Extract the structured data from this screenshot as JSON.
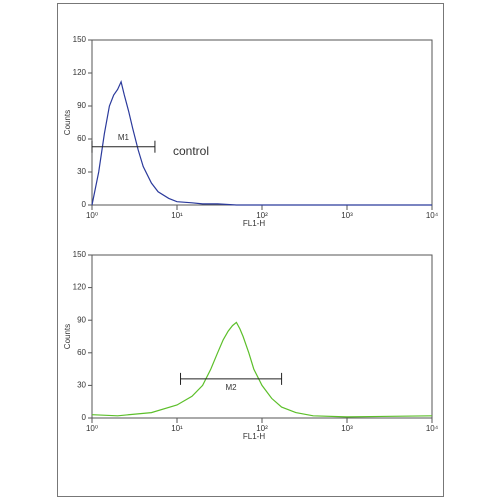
{
  "chart_data": [
    {
      "type": "line",
      "y_label": "Counts",
      "x_label": "FL1-H",
      "log_x": true,
      "color": "#2b3a9c",
      "xlim": [
        1,
        10000
      ],
      "ylim": [
        0,
        150
      ],
      "xticks": [
        {
          "value": 1,
          "label": "10⁰"
        },
        {
          "value": 10,
          "label": "10¹"
        },
        {
          "value": 100,
          "label": "10²"
        },
        {
          "value": 1000,
          "label": "10³"
        },
        {
          "value": 10000,
          "label": "10⁴"
        }
      ],
      "yticks": [
        0,
        30,
        60,
        90,
        120,
        150
      ],
      "x": [
        1,
        1.2,
        1.4,
        1.6,
        1.8,
        2,
        2.2,
        2.4,
        2.7,
        3,
        3.5,
        4,
        5,
        6,
        8,
        10,
        15,
        20,
        30,
        50,
        100,
        10000
      ],
      "values": [
        0,
        30,
        65,
        90,
        100,
        105,
        112,
        100,
        85,
        70,
        50,
        35,
        20,
        12,
        6,
        3,
        2,
        1,
        1,
        0,
        0,
        0
      ],
      "marker": {
        "label": "M1",
        "x": [
          1,
          5.5
        ],
        "y": 53
      },
      "annotation": "control"
    },
    {
      "type": "line",
      "y_label": "Counts",
      "x_label": "FL1-H",
      "log_x": true,
      "color": "#5cbf2a",
      "xlim": [
        1,
        10000
      ],
      "ylim": [
        0,
        150
      ],
      "xticks": [
        {
          "value": 1,
          "label": "10⁰"
        },
        {
          "value": 10,
          "label": "10¹"
        },
        {
          "value": 100,
          "label": "10²"
        },
        {
          "value": 1000,
          "label": "10³"
        },
        {
          "value": 10000,
          "label": "10⁴"
        }
      ],
      "yticks": [
        0,
        30,
        60,
        90,
        120,
        150
      ],
      "x": [
        1,
        2,
        5,
        10,
        15,
        20,
        25,
        30,
        35,
        40,
        45,
        50,
        55,
        60,
        70,
        80,
        100,
        130,
        170,
        250,
        400,
        1000,
        10000
      ],
      "values": [
        3,
        2,
        5,
        12,
        20,
        30,
        45,
        60,
        72,
        80,
        85,
        88,
        82,
        75,
        60,
        45,
        30,
        18,
        10,
        5,
        2,
        1,
        2
      ],
      "marker": {
        "label": "M2",
        "x": [
          11,
          170
        ],
        "y": 36
      }
    }
  ]
}
